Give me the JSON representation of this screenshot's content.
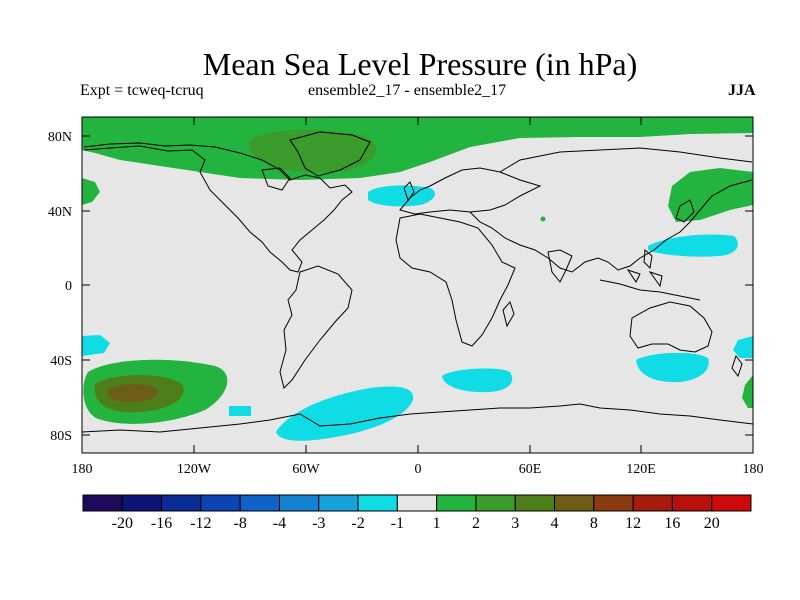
{
  "title": "Mean Sea Level Pressure (in hPa)",
  "subtitle_left": "Expt = tcweq-tcruq",
  "subtitle_center": "ensemble2_17 - ensemble2_17",
  "subtitle_right": "JJA",
  "lat_ticks": [
    "80N",
    "40N",
    "0",
    "40S",
    "80S"
  ],
  "lon_ticks": [
    "180",
    "120W",
    "60W",
    "0",
    "60E",
    "120E",
    "180"
  ],
  "colorbar": {
    "colors": [
      "#1e0a5a",
      "#0c1478",
      "#0a2c96",
      "#0c44b4",
      "#0e62c8",
      "#1482d2",
      "#18a2dc",
      "#10dce6",
      "#e6e6e6",
      "#22b43e",
      "#3a9c2a",
      "#4e7e1a",
      "#6c5c14",
      "#8a3a10",
      "#a41c0c",
      "#b8100a",
      "#cc0a0a"
    ],
    "labels": [
      "-20",
      "-16",
      "-12",
      "-8",
      "-4",
      "-3",
      "-2",
      "-1",
      "1",
      "2",
      "3",
      "4",
      "8",
      "12",
      "16",
      "20"
    ]
  },
  "colors": {
    "background": "#e6e6e6",
    "cyan": "#10dce6",
    "green": "#22b43e",
    "dark_green": "#3a9c2a",
    "olive": "#6c5c14",
    "coast": "#000000"
  }
}
